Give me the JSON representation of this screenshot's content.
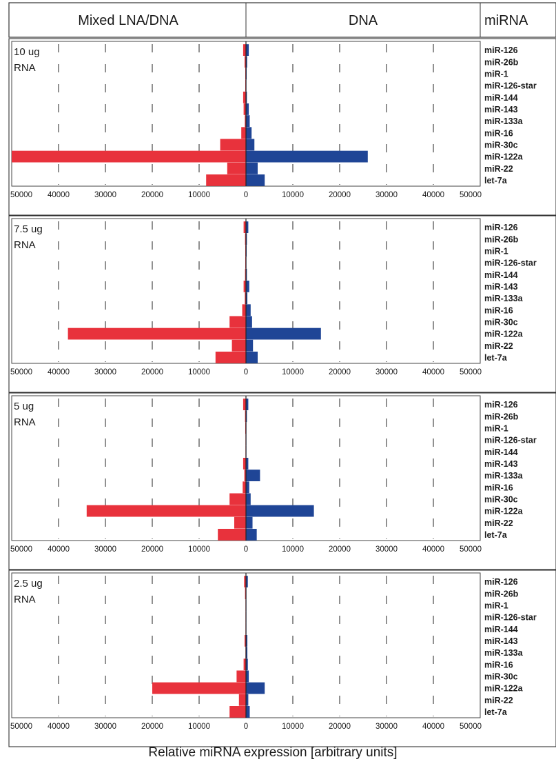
{
  "header": {
    "left_label": "Mixed LNA/DNA",
    "center_label": "DNA",
    "right_label": "miRNA"
  },
  "xlabel": "Relative miRNA expression [arbitrary units]",
  "colors": {
    "mixed": "#e8323c",
    "dna": "#1f4596"
  },
  "chart_data": {
    "type": "bar",
    "orientation": "horizontal",
    "xlim": [
      -50000,
      50000
    ],
    "xticks": [
      "50000",
      "40000",
      "30000",
      "20000",
      "10000",
      "0",
      "10000",
      "20000",
      "30000",
      "40000",
      "50000"
    ],
    "xlabel": "Relative miRNA expression [arbitrary units]",
    "grid": "vertical dashed",
    "categories": [
      "miR-126",
      "miR-26b",
      "miR-1",
      "miR-126-star",
      "miR-144",
      "miR-143",
      "miR-133a",
      "miR-16",
      "miR-30c",
      "miR-122a",
      "miR-22",
      "let-7a"
    ],
    "panels": [
      {
        "label_line1": "10 ug",
        "label_line2": "RNA",
        "series": [
          {
            "name": "Mixed LNA/DNA",
            "values": [
              600,
              300,
              150,
              150,
              600,
              500,
              250,
              1000,
              5500,
              50000,
              4000,
              8500
            ]
          },
          {
            "name": "DNA",
            "values": [
              600,
              250,
              150,
              100,
              200,
              600,
              800,
              1200,
              1800,
              26000,
              2500,
              4000
            ]
          }
        ]
      },
      {
        "label_line1": "7.5 ug",
        "label_line2": "RNA",
        "series": [
          {
            "name": "Mixed LNA/DNA",
            "values": [
              500,
              200,
              150,
              150,
              200,
              500,
              250,
              800,
              3500,
              38000,
              3000,
              6500
            ]
          },
          {
            "name": "DNA",
            "values": [
              500,
              200,
              150,
              100,
              200,
              700,
              300,
              1000,
              1300,
              16000,
              1500,
              2500
            ]
          }
        ]
      },
      {
        "label_line1": "5 ug",
        "label_line2": "RNA",
        "series": [
          {
            "name": "Mixed LNA/DNA",
            "values": [
              600,
              200,
              150,
              100,
              100,
              600,
              350,
              700,
              3500,
              34000,
              2500,
              6000
            ]
          },
          {
            "name": "DNA",
            "values": [
              500,
              200,
              100,
              100,
              100,
              500,
              3000,
              700,
              1000,
              14500,
              1400,
              2300
            ]
          }
        ]
      },
      {
        "label_line1": "2.5 ug",
        "label_line2": "RNA",
        "series": [
          {
            "name": "Mixed LNA/DNA",
            "values": [
              400,
              200,
              100,
              100,
              100,
              300,
              100,
              500,
              2000,
              20000,
              1500,
              3500
            ]
          },
          {
            "name": "DNA",
            "values": [
              400,
              100,
              100,
              100,
              100,
              300,
              300,
              400,
              600,
              4000,
              500,
              800
            ]
          }
        ]
      }
    ]
  }
}
